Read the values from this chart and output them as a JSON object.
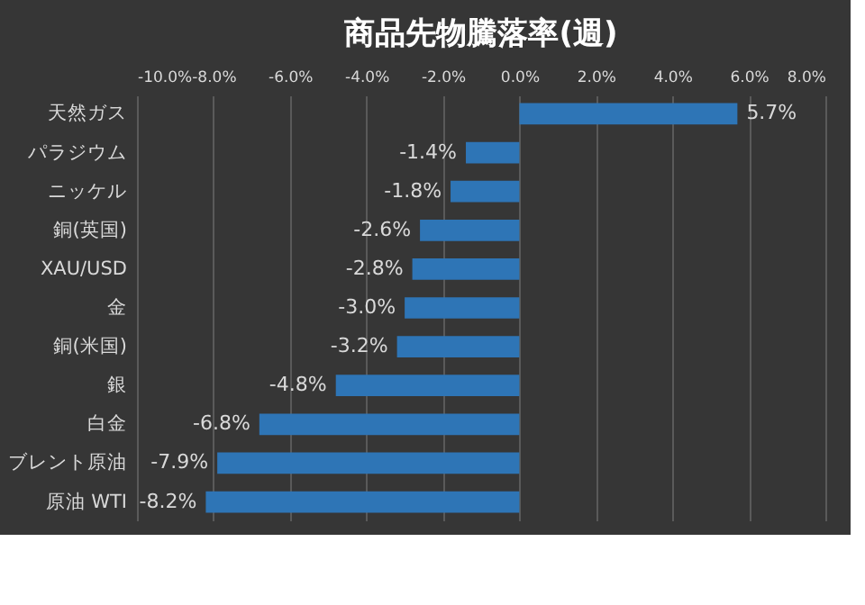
{
  "chart_data": {
    "type": "bar",
    "orientation": "horizontal",
    "title": "商品先物騰落率(週)",
    "categories": [
      "天然ガス",
      "パラジウム",
      "ニッケル",
      "銅(英国)",
      "XAU/USD",
      "金",
      "銅(米国)",
      "銀",
      "白金",
      "ブレント原油",
      "原油 WTI"
    ],
    "values": [
      5.7,
      -1.4,
      -1.8,
      -2.6,
      -2.8,
      -3.0,
      -3.2,
      -4.8,
      -6.8,
      -7.9,
      -8.2
    ],
    "value_labels": [
      "5.7%",
      "-1.4%",
      "-1.8%",
      "-2.6%",
      "-2.8%",
      "-3.0%",
      "-3.2%",
      "-4.8%",
      "-6.8%",
      "-7.9%",
      "-8.2%"
    ],
    "color": "#2e75b6",
    "xlim": [
      -10,
      8
    ],
    "xticks": [
      {
        "value": -10,
        "label": "-10.0%"
      },
      {
        "value": -8,
        "label": "-8.0%"
      },
      {
        "value": -6,
        "label": "-6.0%"
      },
      {
        "value": -4,
        "label": "-4.0%"
      },
      {
        "value": -2,
        "label": "-2.0%"
      },
      {
        "value": 0,
        "label": "0.0%"
      },
      {
        "value": 2,
        "label": "2.0%"
      },
      {
        "value": 4,
        "label": "4.0%"
      },
      {
        "value": 6,
        "label": "6.0%"
      },
      {
        "value": 8,
        "label": "8.0%"
      }
    ],
    "grid": "x"
  }
}
